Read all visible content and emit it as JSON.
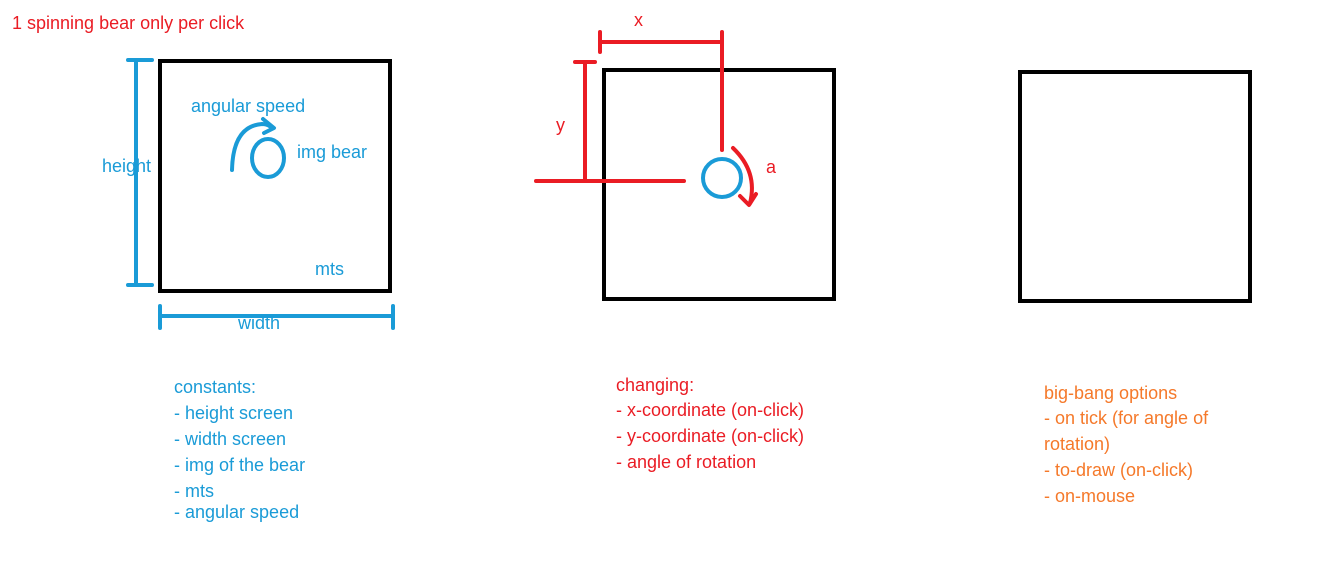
{
  "title": "1 spinning bear only per click",
  "colors": {
    "blue": "#1a9bd7",
    "red": "#ea1c24",
    "orange": "#f5792a",
    "frame": "#000000"
  },
  "panel1": {
    "angular_speed_label": "angular speed",
    "img_bear_label": "img bear",
    "height_label": "height",
    "width_label": "width",
    "mts_label": "mts"
  },
  "panel2": {
    "x_label": "x",
    "y_label": "y",
    "a_label": "a"
  },
  "constants": {
    "heading": "constants:",
    "items": [
      "- height screen",
      "- width screen",
      "- img of the bear",
      "- mts",
      "- angular speed"
    ]
  },
  "changing": {
    "heading": "changing:",
    "items": [
      "- x-coordinate (on-click)",
      "- y-coordinate (on-click)",
      "- angle of rotation"
    ]
  },
  "big_bang": {
    "heading": "big-bang options",
    "items": [
      "- on tick (for angle of",
      "rotation)",
      "- to-draw (on-click)",
      "- on-mouse"
    ]
  }
}
